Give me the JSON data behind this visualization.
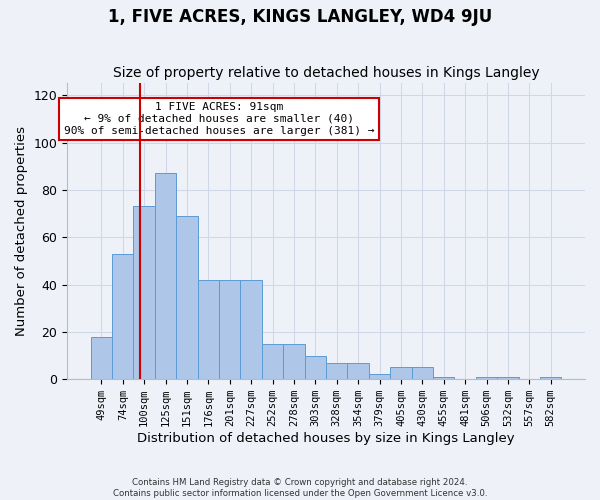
{
  "title": "1, FIVE ACRES, KINGS LANGLEY, WD4 9JU",
  "subtitle": "Size of property relative to detached houses in Kings Langley",
  "xlabel": "Distribution of detached houses by size in Kings Langley",
  "ylabel": "Number of detached properties",
  "bar_values": [
    18,
    53,
    73,
    87,
    69,
    42,
    42,
    42,
    15,
    15,
    10,
    7,
    7,
    2,
    5,
    5,
    1,
    0,
    1,
    1,
    0,
    1
  ],
  "bin_labels": [
    "49sqm",
    "74sqm",
    "100sqm",
    "125sqm",
    "151sqm",
    "176sqm",
    "201sqm",
    "227sqm",
    "252sqm",
    "278sqm",
    "303sqm",
    "328sqm",
    "354sqm",
    "379sqm",
    "405sqm",
    "430sqm",
    "455sqm",
    "481sqm",
    "506sqm",
    "532sqm",
    "557sqm",
    "582sqm"
  ],
  "bar_color": "#aec6e8",
  "bar_edge_color": "#5b9bd5",
  "grid_color": "#d0d8e8",
  "vline_x_pos": 1.8,
  "vline_color": "#cc0000",
  "annotation_text": "1 FIVE ACRES: 91sqm\n← 9% of detached houses are smaller (40)\n90% of semi-detached houses are larger (381) →",
  "annotation_box_color": "#ffffff",
  "annotation_box_edge": "#cc0000",
  "ylim": [
    0,
    125
  ],
  "yticks": [
    0,
    20,
    40,
    60,
    80,
    100,
    120
  ],
  "footer_line1": "Contains HM Land Registry data © Crown copyright and database right 2024.",
  "footer_line2": "Contains public sector information licensed under the Open Government Licence v3.0.",
  "bg_color": "#eef2f8",
  "title_fontsize": 12,
  "subtitle_fontsize": 10,
  "xlabel_fontsize": 9.5,
  "ylabel_fontsize": 9.5
}
